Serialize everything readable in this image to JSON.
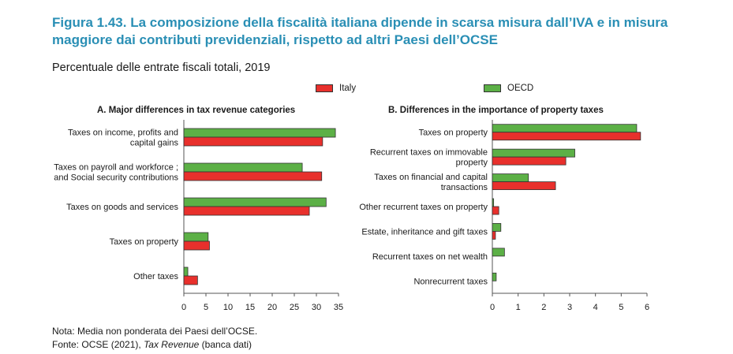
{
  "figure": {
    "title": "Figura 1.43.  La composizione della fiscalità italiana dipende in scarsa misura dall’IVA e in misura maggiore dai contributi previdenziali, rispetto ad altri Paesi dell’OCSE",
    "subtitle": "Percentuale delle entrate fiscali totali, 2019"
  },
  "legend": [
    {
      "name": "Italy",
      "color": "#e8302c"
    },
    {
      "name": "OECD",
      "color": "#5cb046"
    }
  ],
  "notes": {
    "nota": "Nota: Media non ponderata dei Paesi dell’OCSE.",
    "fonte_prefix": "Fonte: OCSE (2021), ",
    "fonte_italic": "Tax Revenue",
    "fonte_suffix": " (banca dati)"
  },
  "chart_data": [
    {
      "type": "bar",
      "orientation": "horizontal",
      "title": "A. Major differences in tax revenue categories",
      "categories": [
        [
          "Taxes on income, profits and",
          "capital gains"
        ],
        [
          "Taxes on payroll and workforce ;",
          "and Social security contributions"
        ],
        [
          "Taxes on goods and services"
        ],
        [
          "Taxes on property"
        ],
        [
          "Other taxes"
        ]
      ],
      "series": [
        {
          "name": "OECD",
          "values": [
            34.3,
            26.8,
            32.2,
            5.5,
            0.9
          ]
        },
        {
          "name": "Italy",
          "values": [
            31.4,
            31.2,
            28.4,
            5.8,
            3.1
          ]
        }
      ],
      "xlim": [
        0,
        35
      ],
      "xticks": [
        0,
        5,
        10,
        15,
        20,
        25,
        30,
        35
      ]
    },
    {
      "type": "bar",
      "orientation": "horizontal",
      "title": "B. Differences in the importance of property taxes",
      "categories": [
        [
          "Taxes on property"
        ],
        [
          "Recurrent taxes on immovable",
          "property"
        ],
        [
          "Taxes on financial and capital",
          "transactions"
        ],
        [
          "Other recurrent taxes on property"
        ],
        [
          "Estate, inheritance and gift taxes"
        ],
        [
          "Recurrent taxes on net wealth"
        ],
        [
          "Nonrecurrent taxes"
        ]
      ],
      "series": [
        {
          "name": "OECD",
          "values": [
            5.6,
            3.2,
            1.4,
            0.05,
            0.33,
            0.47,
            0.15
          ]
        },
        {
          "name": "Italy",
          "values": [
            5.75,
            2.85,
            2.45,
            0.25,
            0.12,
            0.0,
            0.0
          ]
        }
      ],
      "xlim": [
        0,
        6
      ],
      "xticks": [
        0,
        1,
        2,
        3,
        4,
        5,
        6
      ]
    }
  ]
}
